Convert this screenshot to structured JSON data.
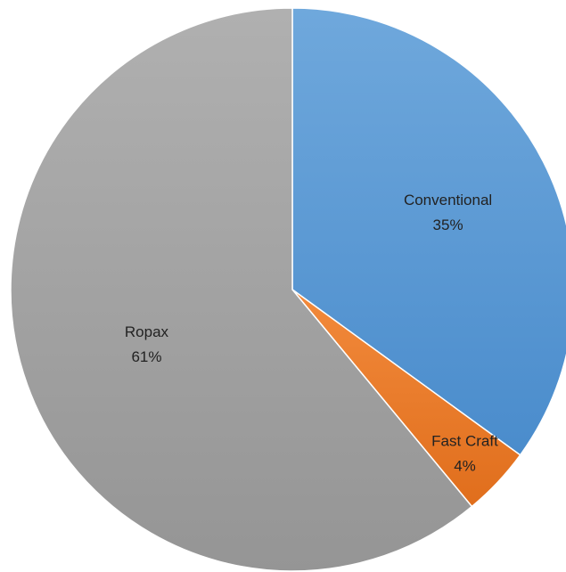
{
  "chart_data": {
    "type": "pie",
    "slices": [
      {
        "label": "Conventional",
        "percent_label": "35%",
        "value": 35,
        "color": "#5b9bd5"
      },
      {
        "label": "Fast Craft",
        "percent_label": "4%",
        "value": 4,
        "color": "#ed7d31"
      },
      {
        "label": "Ropax",
        "percent_label": "61%",
        "value": 61,
        "color": "#a5a5a5"
      }
    ],
    "start_angle": "12 o'clock",
    "direction": "clockwise",
    "legend": "none",
    "title": ""
  }
}
